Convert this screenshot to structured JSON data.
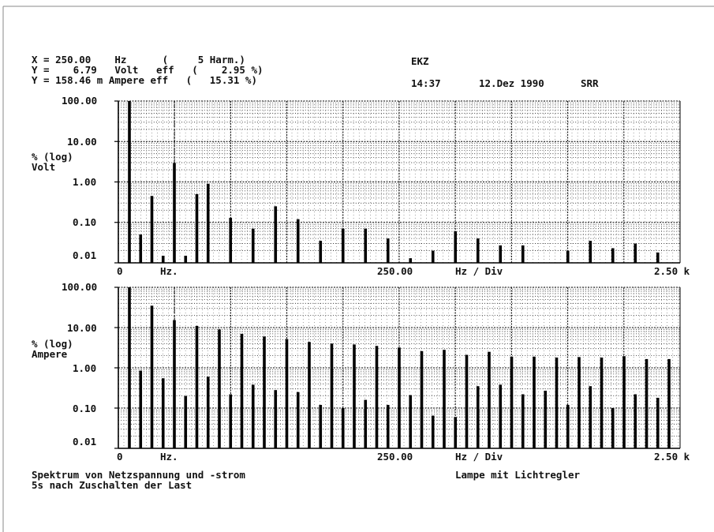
{
  "header": {
    "line1": "X = 250.00    Hz      (     5 Harm.)",
    "line2": "Y =    6.79   Volt   eff   (    2.95 %)",
    "line3": "Y = 158.46 m Ampere eff   (   15.31 %)",
    "title": "EKZ",
    "time": "14:37",
    "date": "12.Dez 1990",
    "initials": "SRR"
  },
  "footer": {
    "left_line1": "Spektrum von Netzspannung und -strom",
    "left_line2": "5s nach Zuschalten der Last",
    "right": "Lampe mit Lichtregler"
  },
  "chart_data": [
    {
      "type": "bar",
      "ylabel": "% (log)",
      "ylabel_unit": "Volt",
      "yscale": "log",
      "ylim": [
        0.01,
        100
      ],
      "yticks": [
        "100.00",
        "10.00",
        "1.00",
        "0.10",
        "0.01"
      ],
      "x_start_label": "0",
      "x_unit_label": "Hz.",
      "x_mid_label": "250.00",
      "x_div_label": "Hz / Div",
      "x_end_label": "2.50 k",
      "grid": true,
      "marker_harmonic": 5,
      "x": [
        1,
        2,
        3,
        4,
        5,
        6,
        7,
        8,
        9,
        10,
        11,
        12,
        13,
        14,
        15,
        16,
        17,
        18,
        19,
        20,
        21,
        22,
        23,
        24,
        25,
        26,
        27,
        28,
        29,
        30,
        31,
        32,
        33,
        34,
        35,
        36,
        37,
        38,
        39,
        40,
        41,
        42,
        43,
        44,
        45,
        46,
        47,
        48,
        49,
        50
      ],
      "values": [
        100,
        0.05,
        0.45,
        0.015,
        2.95,
        0.015,
        0.5,
        0.9,
        0.008,
        0.13,
        0.008,
        0.07,
        0.008,
        0.25,
        0.008,
        0.12,
        0.008,
        0.035,
        0.008,
        0.07,
        0.008,
        0.07,
        0.008,
        0.04,
        0.008,
        0.013,
        0.008,
        0.02,
        0.008,
        0.06,
        0.008,
        0.04,
        0.008,
        0.027,
        0.008,
        0.027,
        0.008,
        0.008,
        0.008,
        0.02,
        0.008,
        0.035,
        0.008,
        0.023,
        0.008,
        0.03,
        0.008,
        0.018,
        0.008,
        0.008
      ]
    },
    {
      "type": "bar",
      "ylabel": "% (log)",
      "ylabel_unit": "Ampere",
      "yscale": "log",
      "ylim": [
        0.01,
        100
      ],
      "yticks": [
        "100.00",
        "10.00",
        "1.00",
        "0.10",
        "0.01"
      ],
      "x_start_label": "0",
      "x_unit_label": "Hz.",
      "x_mid_label": "250.00",
      "x_div_label": "Hz / Div",
      "x_end_label": "2.50 k",
      "grid": true,
      "marker_harmonic": 5,
      "x": [
        1,
        2,
        3,
        4,
        5,
        6,
        7,
        8,
        9,
        10,
        11,
        12,
        13,
        14,
        15,
        16,
        17,
        18,
        19,
        20,
        21,
        22,
        23,
        24,
        25,
        26,
        27,
        28,
        29,
        30,
        31,
        32,
        33,
        34,
        35,
        36,
        37,
        38,
        39,
        40,
        41,
        42,
        43,
        44,
        45,
        46,
        47,
        48,
        49,
        50
      ],
      "values": [
        100,
        0.85,
        35,
        0.55,
        15.31,
        0.2,
        11,
        0.6,
        9,
        0.22,
        7,
        0.38,
        6,
        0.28,
        5.2,
        0.25,
        4.4,
        0.12,
        4,
        0.1,
        3.8,
        0.16,
        3.5,
        0.12,
        3.2,
        0.21,
        2.6,
        0.065,
        2.8,
        0.06,
        2.1,
        0.35,
        2.5,
        0.38,
        1.9,
        0.22,
        1.9,
        0.27,
        1.8,
        0.12,
        1.85,
        0.35,
        1.8,
        0.1,
        1.95,
        0.22,
        1.65,
        0.18,
        1.65,
        0.008
      ]
    }
  ]
}
